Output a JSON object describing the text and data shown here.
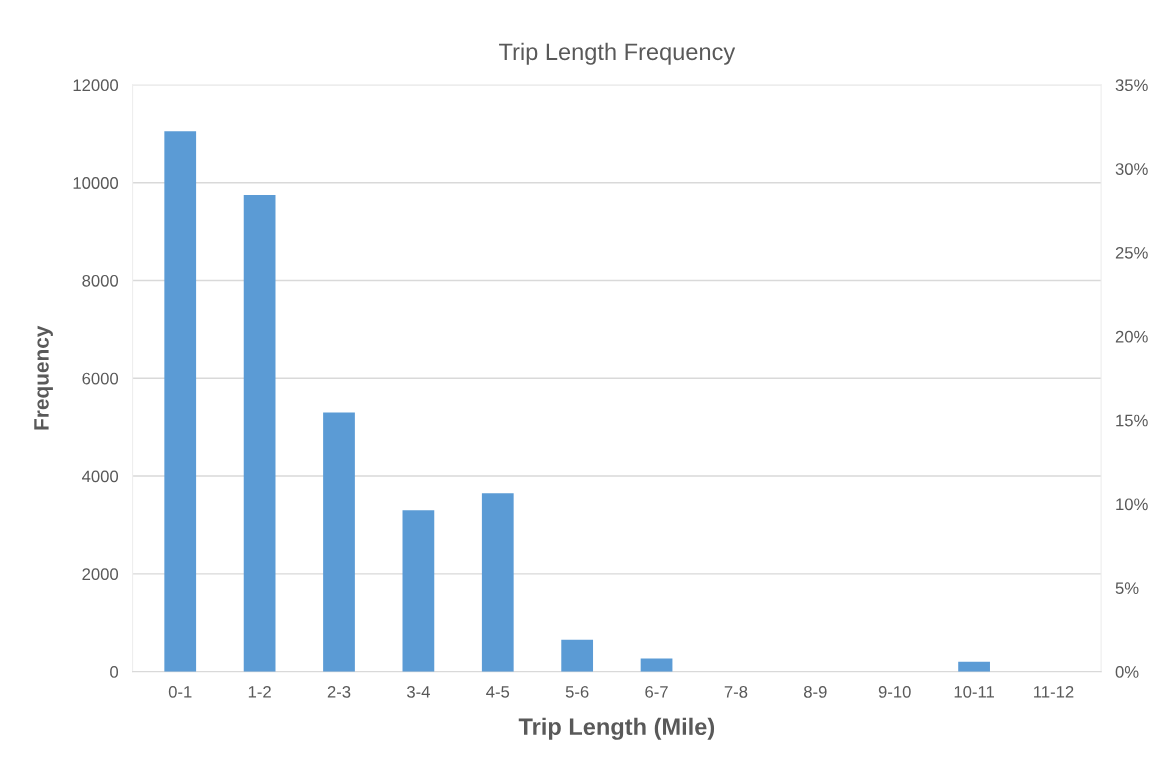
{
  "chart_data": {
    "type": "bar",
    "title": "Trip Length Frequency",
    "xlabel": "Trip Length (Mile)",
    "ylabel": "Frequency",
    "categories": [
      "0-1",
      "1-2",
      "2-3",
      "3-4",
      "4-5",
      "5-6",
      "6-7",
      "7-8",
      "8-9",
      "9-10",
      "10-11",
      "11-12"
    ],
    "values": [
      11050,
      9750,
      5300,
      3300,
      3650,
      650,
      270,
      0,
      0,
      0,
      200,
      0
    ],
    "color": "#5b9bd5",
    "ylim": [
      0,
      12000
    ],
    "yticks": [
      0,
      2000,
      4000,
      6000,
      8000,
      10000,
      12000
    ],
    "y2lim": [
      0,
      35
    ],
    "y2ticks": [
      {
        "value": 0,
        "label": "0%"
      },
      {
        "value": 5,
        "label": "5%"
      },
      {
        "value": 10,
        "label": "10%"
      },
      {
        "value": 15,
        "label": "15%"
      },
      {
        "value": 20,
        "label": "20%"
      },
      {
        "value": 25,
        "label": "25%"
      },
      {
        "value": 30,
        "label": "30%"
      },
      {
        "value": 35,
        "label": "35%"
      }
    ],
    "grid": "y"
  }
}
